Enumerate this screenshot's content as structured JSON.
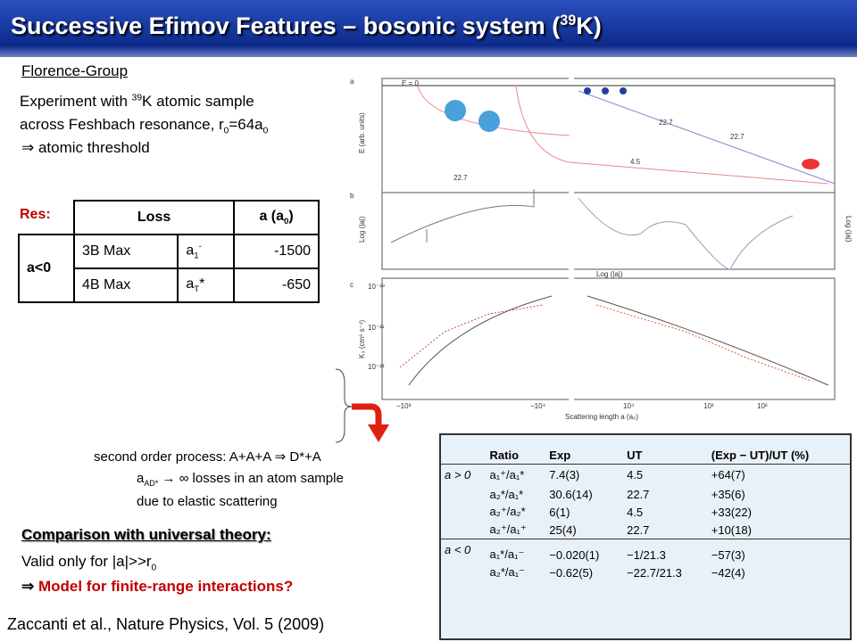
{
  "header": {
    "title": [
      "Successive Efimov Features – bosonic system (",
      "39",
      "K)"
    ]
  },
  "intro": {
    "group": "Florence-Group",
    "line1": [
      "Experiment with ",
      "39",
      "K atomic sample"
    ],
    "line2": [
      "across Feshbach resonance, r",
      "0",
      "=64a",
      "0"
    ],
    "line3": [
      "⇒",
      " atomic threshold"
    ]
  },
  "res_table": {
    "label": "Res:",
    "headers": [
      "Loss",
      [
        "a (a",
        "0",
        ")"
      ]
    ],
    "group": "a<0",
    "rows": [
      [
        "3B Max",
        [
          "a",
          "1",
          "-"
        ],
        -1500
      ],
      [
        "4B Max",
        [
          "a",
          "T",
          "*"
        ],
        -650
      ]
    ]
  },
  "figure": {
    "panels": [
      "a",
      "b",
      "c"
    ],
    "labels": {
      "e0": "E = 0",
      "ey": "E (arb. units)",
      "d1": "22.7",
      "d2": "22.7",
      "d3": "22.7",
      "d4": "4.5",
      "logl": "Log (|a|)",
      "logr": "Log (|a|)",
      "logx": "Log (|a|)",
      "k3": "K₃ (cm⁶ s⁻¹)",
      "xlabel": "Scattering length a (a₀)"
    },
    "yticks": [
      "10⁻¹⁹",
      "10⁻²¹",
      "10⁻²³"
    ],
    "xticks": [
      "−10³",
      "−10⁴",
      "10⁴",
      "10³",
      "10²"
    ]
  },
  "note": {
    "line1": "second order process: A+A+A ⇒ D*+A",
    "line2": [
      "a",
      "AD*",
      " → ∞ losses in an atom sample"
    ],
    "line3": "due to elastic scattering"
  },
  "comparison": {
    "title": "Comparison with universal theory:",
    "line1": [
      "Valid only for |a|>>r",
      "0"
    ],
    "line2": [
      "⇒",
      " Model for finite-range interactions?"
    ]
  },
  "citation": "Zaccanti et al., Nature Physics, Vol. 5 (2009)",
  "ratio_table": {
    "headers": [
      "Ratio",
      "Exp",
      "UT",
      "(Exp − UT)/UT (%)"
    ],
    "groups": [
      {
        "label": "a > 0",
        "rows": [
          [
            "a₁⁺/a₁*",
            "7.4(3)",
            "4.5",
            "+64(7)"
          ],
          [
            "a₂*/a₁*",
            "30.6(14)",
            "22.7",
            "+35(6)"
          ],
          [
            "a₂⁺/a₂*",
            "6(1)",
            "4.5",
            "+33(22)"
          ],
          [
            "a₂⁺/a₁⁺",
            "25(4)",
            "22.7",
            "+10(18)"
          ]
        ]
      },
      {
        "label": "a < 0",
        "rows": [
          [
            "a₁*/a₁⁻",
            "−0.020(1)",
            "−1/21.3",
            "−57(3)"
          ],
          [
            "a₂*/a₁⁻",
            "−0.62(5)",
            "−22.7/21.3",
            "−42(4)"
          ]
        ]
      }
    ]
  }
}
